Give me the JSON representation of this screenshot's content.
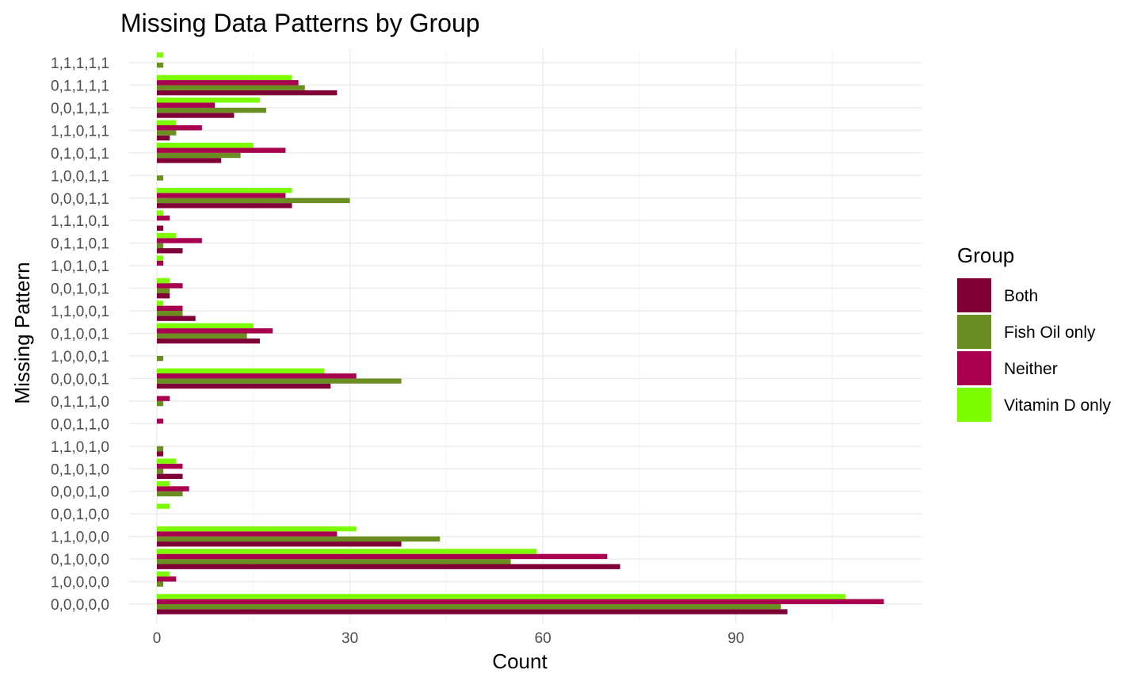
{
  "chart_data": {
    "type": "bar",
    "orientation": "horizontal",
    "title": "Missing Data Patterns by Group",
    "xlabel": "Count",
    "ylabel": "Missing Pattern",
    "xlim": [
      0,
      113
    ],
    "x_ticks": [
      0,
      30,
      60,
      90
    ],
    "grid": true,
    "legend": {
      "title": "Group",
      "position": "right"
    },
    "categories": [
      "1,1,1,1,1",
      "0,1,1,1,1",
      "0,0,1,1,1",
      "1,1,0,1,1",
      "0,1,0,1,1",
      "1,0,0,1,1",
      "0,0,0,1,1",
      "1,1,1,0,1",
      "0,1,1,0,1",
      "1,0,1,0,1",
      "0,0,1,0,1",
      "1,1,0,0,1",
      "0,1,0,0,1",
      "1,0,0,0,1",
      "0,0,0,0,1",
      "0,1,1,1,0",
      "0,0,1,1,0",
      "1,1,0,1,0",
      "0,1,0,1,0",
      "0,0,0,1,0",
      "0,0,1,0,0",
      "1,1,0,0,0",
      "0,1,0,0,0",
      "1,0,0,0,0",
      "0,0,0,0,0"
    ],
    "series": [
      {
        "name": "Both",
        "color": "#7F0037",
        "values": [
          0,
          28,
          12,
          2,
          10,
          0,
          21,
          1,
          4,
          0,
          2,
          6,
          16,
          0,
          27,
          0,
          0,
          1,
          4,
          0,
          0,
          38,
          72,
          0,
          98
        ]
      },
      {
        "name": "Fish Oil only",
        "color": "#6B8E23",
        "values": [
          1,
          23,
          17,
          3,
          13,
          1,
          30,
          0,
          1,
          0,
          2,
          4,
          14,
          1,
          38,
          1,
          0,
          1,
          1,
          4,
          0,
          44,
          55,
          1,
          97
        ]
      },
      {
        "name": "Neither",
        "color": "#A8004F",
        "values": [
          0,
          22,
          9,
          7,
          20,
          0,
          20,
          2,
          7,
          1,
          4,
          4,
          18,
          0,
          31,
          2,
          1,
          0,
          4,
          5,
          0,
          28,
          70,
          3,
          113
        ]
      },
      {
        "name": "Vitamin D only",
        "color": "#7CFC00",
        "values": [
          1,
          21,
          16,
          3,
          15,
          0,
          21,
          1,
          3,
          1,
          2,
          1,
          15,
          0,
          26,
          0,
          0,
          0,
          3,
          2,
          2,
          31,
          59,
          2,
          107
        ]
      }
    ]
  }
}
